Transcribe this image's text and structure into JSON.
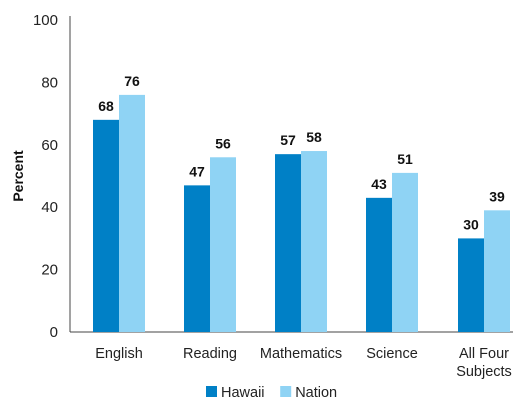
{
  "chart_data": {
    "type": "bar",
    "ylabel": "Percent",
    "ylim": [
      0,
      100
    ],
    "yticks": [
      "0",
      "20",
      "40",
      "60",
      "80",
      "100"
    ],
    "categories": [
      [
        "English"
      ],
      [
        "Reading"
      ],
      [
        "Mathematics"
      ],
      [
        "Science"
      ],
      [
        "All Four",
        "Subjects"
      ]
    ],
    "series": [
      {
        "name": "Hawaii",
        "values": [
          68,
          47,
          57,
          43,
          30
        ],
        "color": "#0080c6"
      },
      {
        "name": "Nation",
        "values": [
          76,
          56,
          58,
          51,
          39
        ],
        "color": "#8fd3f4"
      }
    ],
    "legend": "bottom-center",
    "grid": false
  }
}
